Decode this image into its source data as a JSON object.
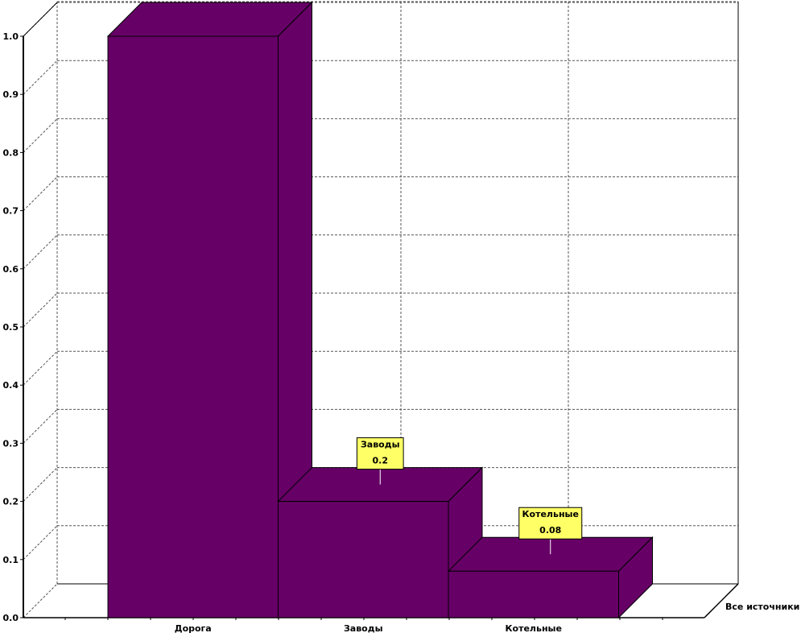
{
  "chart_data": {
    "type": "bar",
    "categories": [
      "Дорога",
      "Заводы",
      "Котельные"
    ],
    "values": [
      1.0,
      0.2,
      0.08
    ],
    "y_ticks": [
      "0.0",
      "0.1",
      "0.2",
      "0.3",
      "0.4",
      "0.5",
      "0.6",
      "0.7",
      "0.8",
      "0.9",
      "1.0"
    ],
    "ylim": [
      0,
      1.0
    ],
    "grid": true,
    "depth_label": "Все источники",
    "callouts": [
      {
        "category": "Заводы",
        "value_label": "0.2"
      },
      {
        "category": "Котельные",
        "value_label": "0.08"
      }
    ],
    "colors": {
      "bar": "#660066",
      "callout_bg": "#ffff66",
      "grid": "#555555"
    }
  }
}
